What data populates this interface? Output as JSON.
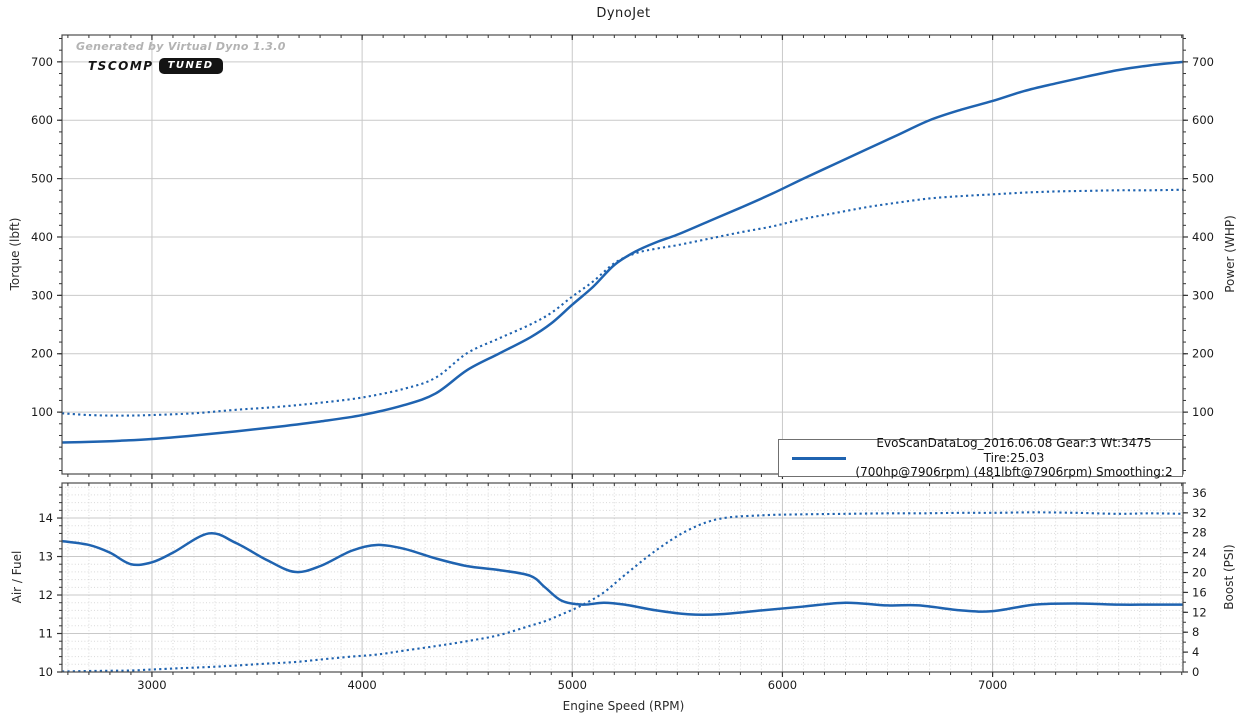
{
  "title": "DynoJet",
  "watermark": "Generated by Virtual Dyno 1.3.0",
  "badge": {
    "brand": "TSCOMP",
    "tag": "TUNED"
  },
  "legend": {
    "line1": "EvoScanDataLog_2016.06.08 Gear:3 Wt:3475 Tire:25.03",
    "line2": "(700hp@7906rpm) (481lbft@7906rpm) Smoothing:2"
  },
  "colors": {
    "line": "#1f63b0",
    "grid_major": "#c9c9c9",
    "grid_minor": "#d9d9d9",
    "border": "#4d4d4d",
    "tick": "#333333",
    "tick_label": "#1a1a1a"
  },
  "chart_data": [
    {
      "type": "line",
      "title": "DynoJet",
      "xlabel": "",
      "xlim": [
        2572,
        7906
      ],
      "x_major": 1000,
      "x_minor": 100,
      "x_tick_labels": [
        3000,
        4000,
        5000,
        6000,
        7000
      ],
      "minor_grid": false,
      "left_axis": {
        "label": "Torque (lbft)",
        "lim": [
          -6,
          746
        ],
        "major": 100,
        "minor": 20,
        "tick_labels": [
          100,
          200,
          300,
          400,
          500,
          600,
          700
        ]
      },
      "right_axis": {
        "label": "Power (WHP)",
        "lim": [
          -6,
          746
        ],
        "major": 100,
        "minor": 20,
        "tick_labels": [
          100,
          200,
          300,
          400,
          500,
          600,
          700
        ]
      },
      "x": [
        2572,
        2700,
        2850,
        3000,
        3200,
        3400,
        3600,
        3800,
        4000,
        4200,
        4350,
        4500,
        4650,
        4800,
        4900,
        5000,
        5100,
        5200,
        5300,
        5400,
        5500,
        5650,
        5800,
        5950,
        6100,
        6250,
        6400,
        6550,
        6700,
        6850,
        7000,
        7150,
        7300,
        7450,
        7600,
        7750,
        7906
      ],
      "series": [
        {
          "name": "power_whp",
          "style": "solid",
          "axis": "right",
          "values": [
            48,
            49,
            51,
            54,
            60,
            67,
            75,
            84,
            95,
            112,
            132,
            172,
            200,
            228,
            252,
            284,
            315,
            352,
            375,
            391,
            404,
            427,
            450,
            474,
            500,
            525,
            550,
            575,
            600,
            618,
            633,
            650,
            663,
            675,
            686,
            694,
            700
          ]
        },
        {
          "name": "torque_lbft",
          "style": "dotted",
          "axis": "left",
          "values": [
            98,
            95,
            94,
            95,
            98,
            104,
            109,
            116,
            125,
            140,
            159,
            201,
            226,
            250,
            270,
            298,
            324,
            355,
            372,
            380,
            386,
            397,
            408,
            418,
            431,
            441,
            451,
            459,
            466,
            470,
            473,
            476,
            478,
            479,
            480,
            480,
            481
          ]
        }
      ]
    },
    {
      "type": "line",
      "title": "",
      "xlabel": "Engine Speed (RPM)",
      "xlim": [
        2572,
        7906
      ],
      "x_major": 1000,
      "x_minor": 100,
      "x_tick_labels": [
        3000,
        4000,
        5000,
        6000,
        7000
      ],
      "minor_grid": true,
      "left_axis": {
        "label": "Air / Fuel",
        "lim": [
          10,
          14.91
        ],
        "major": 1,
        "minor": 0.2,
        "tick_labels": [
          10,
          11,
          12,
          13,
          14
        ]
      },
      "right_axis": {
        "label": "Boost (PSI)",
        "lim": [
          0,
          38
        ],
        "major": 4,
        "minor": 2,
        "tick_labels": [
          0,
          4,
          8,
          12,
          16,
          20,
          24,
          28,
          32,
          36
        ]
      },
      "x": [
        2572,
        2700,
        2800,
        2900,
        3000,
        3100,
        3270,
        3400,
        3550,
        3680,
        3800,
        3950,
        4070,
        4200,
        4350,
        4500,
        4650,
        4800,
        4870,
        4950,
        5050,
        5150,
        5250,
        5400,
        5550,
        5700,
        5900,
        6100,
        6300,
        6500,
        6650,
        6850,
        7000,
        7200,
        7400,
        7600,
        7750,
        7906
      ],
      "series": [
        {
          "name": "air_fuel_ratio",
          "style": "solid",
          "axis": "left",
          "values": [
            13.4,
            13.3,
            13.1,
            12.8,
            12.85,
            13.1,
            13.6,
            13.35,
            12.9,
            12.6,
            12.75,
            13.15,
            13.3,
            13.2,
            12.95,
            12.75,
            12.65,
            12.5,
            12.2,
            11.85,
            11.75,
            11.8,
            11.75,
            11.6,
            11.5,
            11.5,
            11.6,
            11.7,
            11.8,
            11.73,
            11.73,
            11.6,
            11.58,
            11.75,
            11.78,
            11.75,
            11.75,
            11.75
          ]
        },
        {
          "name": "boost_psi",
          "style": "dotted",
          "axis": "right",
          "values": [
            0.1,
            0.2,
            0.25,
            0.3,
            0.5,
            0.7,
            1.0,
            1.3,
            1.7,
            2.0,
            2.5,
            3.1,
            3.5,
            4.3,
            5.2,
            6.2,
            7.4,
            9.3,
            10.2,
            11.6,
            13.5,
            16.0,
            19.5,
            24.5,
            28.5,
            30.8,
            31.5,
            31.7,
            31.8,
            31.9,
            31.9,
            32.0,
            32.0,
            32.1,
            32.0,
            31.8,
            31.9,
            31.8
          ]
        }
      ]
    }
  ]
}
